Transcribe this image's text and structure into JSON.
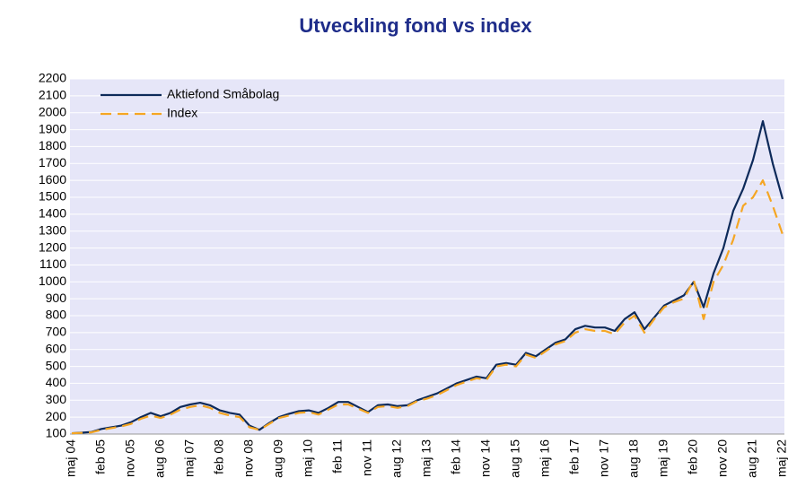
{
  "chart_data": {
    "type": "line",
    "title": "Utveckling fond vs index",
    "categories": [
      "maj 04",
      null,
      null,
      "feb 05",
      null,
      null,
      "nov 05",
      null,
      null,
      "aug 06",
      null,
      null,
      "maj 07",
      null,
      null,
      "feb 08",
      null,
      null,
      "nov 08",
      null,
      null,
      "aug 09",
      null,
      null,
      "maj 10",
      null,
      null,
      "feb 11",
      null,
      null,
      "nov 11",
      null,
      null,
      "aug 12",
      null,
      null,
      "maj 13",
      null,
      null,
      "feb 14",
      null,
      null,
      "nov 14",
      null,
      null,
      "aug 15",
      null,
      null,
      "maj 16",
      null,
      null,
      "feb 17",
      null,
      null,
      "nov 17",
      null,
      null,
      "aug 18",
      null,
      null,
      "maj 19",
      null,
      null,
      "feb 20",
      null,
      null,
      "nov 20",
      null,
      null,
      "aug 21",
      null,
      null,
      "maj 22"
    ],
    "series": [
      {
        "name": "Aktiefond Småbolag",
        "color": "#0d2a5a",
        "dashed": false,
        "values": [
          105,
          108,
          112,
          130,
          140,
          150,
          170,
          200,
          225,
          205,
          225,
          260,
          275,
          285,
          270,
          240,
          225,
          215,
          150,
          125,
          165,
          200,
          220,
          235,
          240,
          225,
          255,
          290,
          290,
          260,
          230,
          270,
          275,
          265,
          270,
          300,
          320,
          340,
          370,
          400,
          420,
          440,
          430,
          510,
          520,
          510,
          580,
          560,
          600,
          640,
          660,
          720,
          740,
          730,
          730,
          710,
          780,
          820,
          720,
          790,
          860,
          890,
          920,
          1000,
          850,
          1050,
          1200,
          1420,
          1550,
          1720,
          1950,
          1700,
          1490
        ]
      },
      {
        "name": "Index",
        "color": "#f5a623",
        "dashed": true,
        "values": [
          105,
          107,
          110,
          125,
          135,
          145,
          160,
          190,
          210,
          195,
          215,
          245,
          260,
          270,
          255,
          225,
          210,
          200,
          140,
          125,
          160,
          195,
          210,
          225,
          230,
          215,
          245,
          275,
          275,
          250,
          225,
          260,
          265,
          255,
          265,
          295,
          310,
          330,
          360,
          390,
          410,
          430,
          420,
          500,
          510,
          500,
          570,
          550,
          590,
          630,
          650,
          700,
          720,
          710,
          710,
          690,
          760,
          800,
          700,
          780,
          850,
          880,
          900,
          1010,
          780,
          1000,
          1100,
          1250,
          1450,
          1500,
          1600,
          1450,
          1280
        ]
      }
    ],
    "ylim": [
      100,
      2200
    ],
    "yticks": [
      100,
      200,
      300,
      400,
      500,
      600,
      700,
      800,
      900,
      1000,
      1100,
      1200,
      1300,
      1400,
      1500,
      1600,
      1700,
      1800,
      1900,
      2000,
      2100,
      2200
    ],
    "grid": true,
    "legend": "upper left"
  }
}
